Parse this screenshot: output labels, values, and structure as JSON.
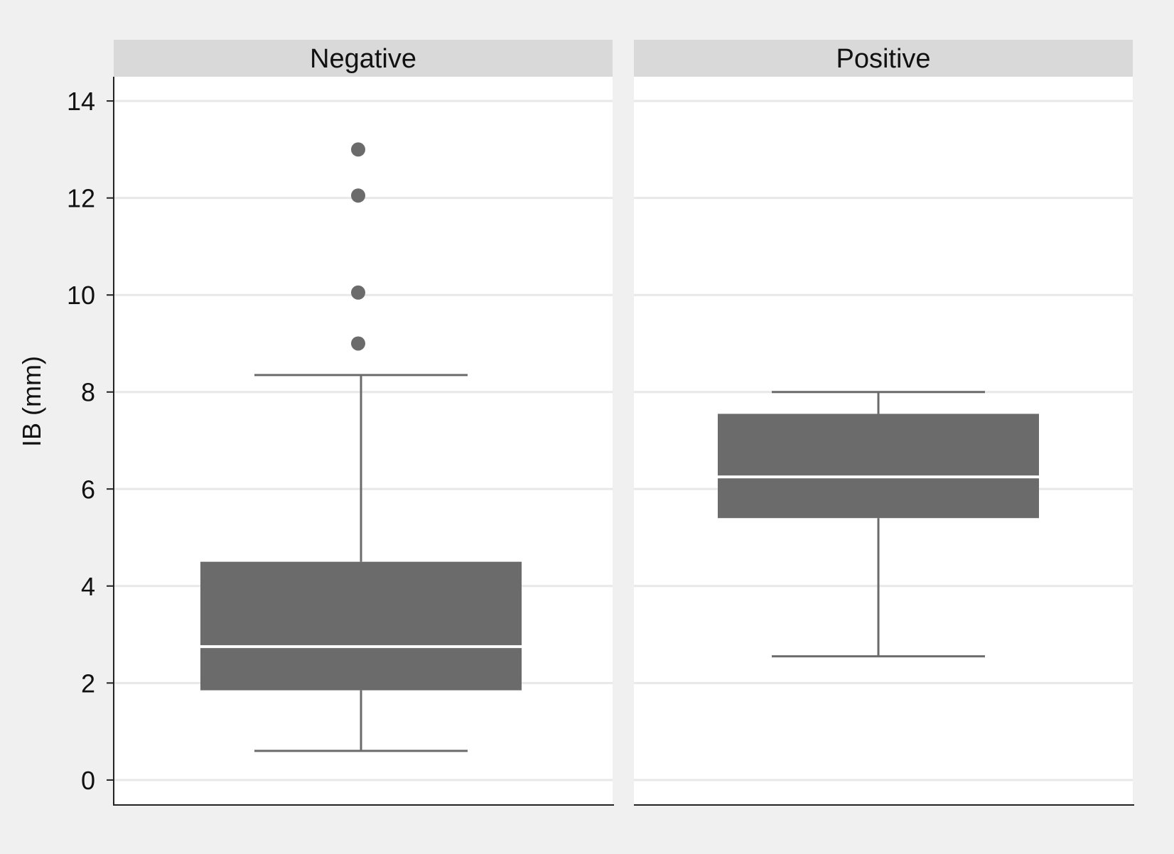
{
  "chart_data": {
    "type": "boxplot",
    "ylabel": "IB (mm)",
    "ylim": [
      -0.5,
      14.5
    ],
    "yticks": [
      0,
      2,
      4,
      6,
      8,
      10,
      12,
      14
    ],
    "grid": true,
    "colors": {
      "background": "#f0f0f0",
      "panel": "#ffffff",
      "strip": "#d9d9d9",
      "box": "#6b6b6b",
      "median": "#ffffff",
      "grid": "#e8e8e8"
    },
    "panels": [
      {
        "name": "Negative",
        "whisker_low": 0.6,
        "q1": 1.85,
        "median": 2.75,
        "q3": 4.5,
        "whisker_high": 8.35,
        "outliers": [
          9.0,
          10.05,
          12.05,
          13.0
        ]
      },
      {
        "name": "Positive",
        "whisker_low": 2.55,
        "q1": 5.4,
        "median": 6.25,
        "q3": 7.55,
        "whisker_high": 8.0,
        "outliers": []
      }
    ]
  }
}
